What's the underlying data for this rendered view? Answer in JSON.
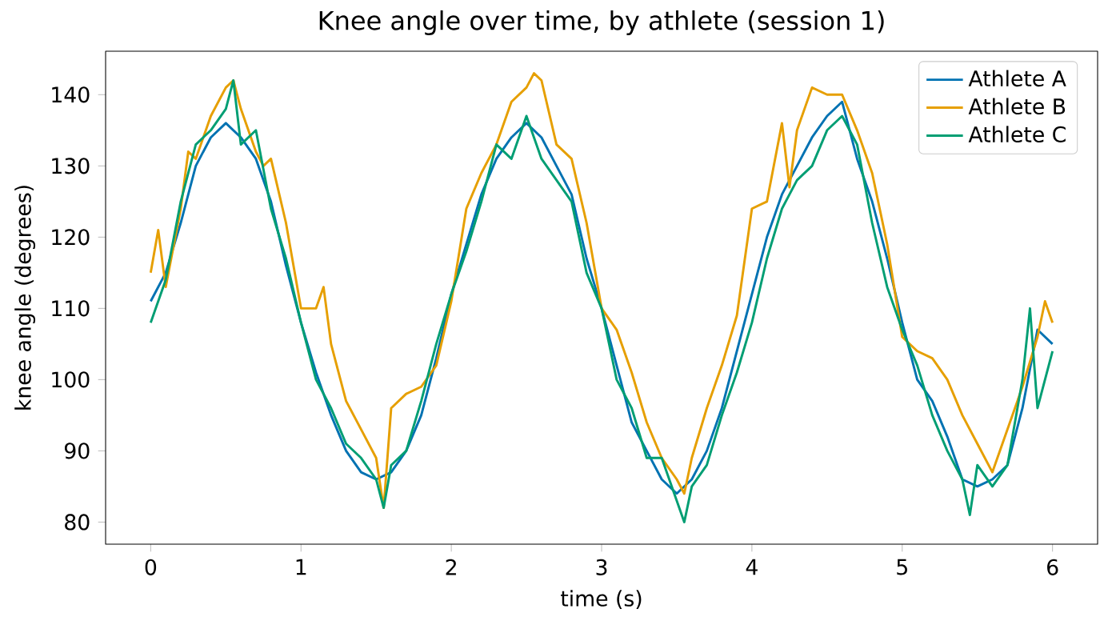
{
  "chart_data": {
    "type": "line",
    "title": "Knee angle over time, by athlete (session 1)",
    "xlabel": "time (s)",
    "ylabel": "knee angle (degrees)",
    "xlim": [
      -0.3,
      6.3
    ],
    "ylim": [
      76.9,
      146.1
    ],
    "xticks": [
      0,
      1,
      2,
      3,
      4,
      5,
      6
    ],
    "yticks": [
      80,
      90,
      100,
      110,
      120,
      130,
      140
    ],
    "legend": "top right",
    "line_style": "solid",
    "series": [
      {
        "name": "Athlete A",
        "color": "#0072b2",
        "x": [
          0,
          0.1,
          0.2,
          0.3,
          0.4,
          0.5,
          0.6,
          0.7,
          0.8,
          0.9,
          1.0,
          1.1,
          1.2,
          1.3,
          1.4,
          1.5,
          1.6,
          1.7,
          1.8,
          1.9,
          2.0,
          2.1,
          2.2,
          2.3,
          2.4,
          2.5,
          2.6,
          2.7,
          2.8,
          2.9,
          3.0,
          3.1,
          3.2,
          3.3,
          3.4,
          3.5,
          3.6,
          3.7,
          3.8,
          3.9,
          4.0,
          4.1,
          4.2,
          4.3,
          4.4,
          4.5,
          4.6,
          4.7,
          4.8,
          4.9,
          5.0,
          5.1,
          5.2,
          5.3,
          5.4,
          5.5,
          5.6,
          5.7,
          5.8,
          5.9,
          6.0
        ],
        "values": [
          111,
          115,
          122,
          130,
          134,
          136,
          134,
          131,
          125,
          116,
          108,
          101,
          95,
          90,
          87,
          86,
          87,
          90,
          95,
          103,
          112,
          119,
          126,
          131,
          134,
          136,
          134,
          130,
          126,
          117,
          110,
          102,
          94,
          90,
          86,
          84,
          86,
          90,
          96,
          104,
          112,
          120,
          126,
          130,
          134,
          137,
          139,
          131,
          125,
          117,
          108,
          100,
          97,
          92,
          86,
          85,
          86,
          88,
          96,
          107,
          105
        ]
      },
      {
        "name": "Athlete B",
        "color": "#e69f00",
        "x": [
          0,
          0.05,
          0.1,
          0.2,
          0.25,
          0.3,
          0.35,
          0.4,
          0.5,
          0.55,
          0.6,
          0.7,
          0.75,
          0.8,
          0.9,
          1.0,
          1.1,
          1.15,
          1.2,
          1.3,
          1.4,
          1.5,
          1.55,
          1.6,
          1.7,
          1.8,
          1.9,
          2.0,
          2.1,
          2.2,
          2.3,
          2.4,
          2.5,
          2.55,
          2.6,
          2.7,
          2.8,
          2.9,
          3.0,
          3.1,
          3.2,
          3.3,
          3.4,
          3.5,
          3.55,
          3.6,
          3.7,
          3.8,
          3.9,
          4.0,
          4.1,
          4.2,
          4.25,
          4.3,
          4.4,
          4.5,
          4.6,
          4.7,
          4.8,
          4.9,
          5.0,
          5.1,
          5.2,
          5.3,
          5.4,
          5.5,
          5.6,
          5.7,
          5.8,
          5.9,
          5.95,
          6.0
        ],
        "values": [
          115,
          121,
          113,
          124,
          132,
          131,
          134,
          137,
          141,
          142,
          138,
          132,
          130,
          131,
          122,
          110,
          110,
          113,
          105,
          97,
          93,
          89,
          82,
          96,
          98,
          99,
          102,
          111,
          124,
          129,
          133,
          139,
          141,
          143,
          142,
          133,
          131,
          122,
          110,
          107,
          101,
          94,
          89,
          86,
          84,
          89,
          96,
          102,
          109,
          124,
          125,
          136,
          127,
          135,
          141,
          140,
          140,
          135,
          129,
          119,
          106,
          104,
          103,
          100,
          95,
          91,
          87,
          93,
          99,
          106,
          111,
          108
        ]
      },
      {
        "name": "Athlete C",
        "color": "#009e73",
        "x": [
          0,
          0.1,
          0.2,
          0.3,
          0.4,
          0.5,
          0.55,
          0.6,
          0.7,
          0.8,
          0.9,
          1.0,
          1.1,
          1.2,
          1.3,
          1.4,
          1.5,
          1.55,
          1.6,
          1.7,
          1.8,
          1.9,
          2.0,
          2.1,
          2.2,
          2.3,
          2.4,
          2.5,
          2.6,
          2.7,
          2.8,
          2.9,
          3.0,
          3.1,
          3.2,
          3.3,
          3.4,
          3.5,
          3.55,
          3.6,
          3.7,
          3.8,
          3.9,
          4.0,
          4.1,
          4.2,
          4.3,
          4.4,
          4.5,
          4.6,
          4.7,
          4.8,
          4.9,
          5.0,
          5.1,
          5.2,
          5.3,
          5.4,
          5.45,
          5.5,
          5.6,
          5.7,
          5.8,
          5.85,
          5.9,
          6.0
        ],
        "values": [
          108,
          114,
          125,
          133,
          135,
          138,
          142,
          133,
          135,
          124,
          117,
          108,
          100,
          96,
          91,
          89,
          86,
          82,
          88,
          90,
          97,
          105,
          112,
          118,
          125,
          133,
          131,
          137,
          131,
          128,
          125,
          115,
          110,
          100,
          96,
          89,
          89,
          83,
          80,
          85,
          88,
          95,
          101,
          108,
          117,
          124,
          128,
          130,
          135,
          137,
          133,
          122,
          113,
          107,
          102,
          95,
          90,
          86,
          81,
          88,
          85,
          88,
          100,
          110,
          96,
          104
        ]
      }
    ]
  }
}
